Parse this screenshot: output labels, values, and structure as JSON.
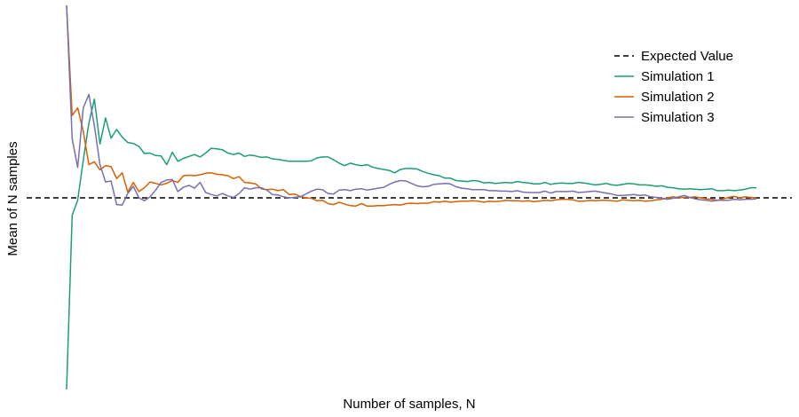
{
  "chart_data": {
    "type": "line",
    "xlabel": "Number of samples, N",
    "ylabel": "Mean of N samples",
    "xlim": [
      1,
      125
    ],
    "ylim": [
      -4.0,
      4.0
    ],
    "grid": false,
    "legend_position": "top-right",
    "expected_value": 0.0,
    "legend": [
      {
        "name": "Expected Value",
        "style": "dashed",
        "color": "#000000"
      },
      {
        "name": "Simulation 1",
        "style": "solid",
        "color": "#1b9e77"
      },
      {
        "name": "Simulation 2",
        "style": "solid",
        "color": "#d95f02"
      },
      {
        "name": "Simulation 3",
        "style": "solid",
        "color": "#7570b3"
      }
    ],
    "series": [
      {
        "name": "Simulation 1",
        "color": "#1b9e77",
        "values": [
          -3.98,
          -0.36,
          -0.05,
          0.78,
          1.55,
          2.05,
          1.12,
          1.66,
          1.24,
          1.42,
          1.26,
          1.15,
          1.13,
          1.07,
          0.92,
          0.93,
          0.88,
          0.87,
          0.69,
          0.95,
          0.76,
          0.82,
          0.86,
          0.9,
          0.85,
          0.93,
          1.03,
          1.02,
          1.0,
          0.93,
          0.9,
          0.93,
          0.86,
          0.89,
          0.87,
          0.84,
          0.85,
          0.81,
          0.8,
          0.78,
          0.76,
          0.76,
          0.76,
          0.76,
          0.77,
          0.83,
          0.85,
          0.85,
          0.79,
          0.72,
          0.67,
          0.72,
          0.69,
          0.67,
          0.69,
          0.64,
          0.61,
          0.59,
          0.57,
          0.52,
          0.59,
          0.61,
          0.61,
          0.6,
          0.55,
          0.51,
          0.48,
          0.46,
          0.41,
          0.41,
          0.36,
          0.35,
          0.34,
          0.36,
          0.35,
          0.31,
          0.32,
          0.3,
          0.31,
          0.32,
          0.31,
          0.34,
          0.32,
          0.31,
          0.29,
          0.29,
          0.32,
          0.28,
          0.3,
          0.31,
          0.3,
          0.3,
          0.32,
          0.31,
          0.29,
          0.27,
          0.28,
          0.3,
          0.27,
          0.26,
          0.28,
          0.3,
          0.29,
          0.27,
          0.27,
          0.26,
          0.24,
          0.25,
          0.22,
          0.21,
          0.19,
          0.18,
          0.19,
          0.18,
          0.17,
          0.18,
          0.19,
          0.15,
          0.15,
          0.16,
          0.15,
          0.16,
          0.18,
          0.21,
          0.21
        ]
      },
      {
        "name": "Simulation 2",
        "color": "#d95f02",
        "values": [
          4.0,
          1.71,
          1.87,
          1.38,
          0.69,
          0.75,
          0.58,
          0.67,
          0.65,
          0.4,
          0.52,
          0.12,
          0.32,
          0.13,
          0.21,
          0.33,
          0.3,
          0.27,
          0.3,
          0.36,
          0.32,
          0.46,
          0.47,
          0.46,
          0.48,
          0.51,
          0.52,
          0.49,
          0.48,
          0.46,
          0.4,
          0.44,
          0.32,
          0.31,
          0.29,
          0.19,
          0.17,
          0.18,
          0.15,
          0.17,
          0.07,
          0.08,
          0.03,
          0.0,
          -0.01,
          -0.06,
          -0.05,
          -0.12,
          -0.14,
          -0.09,
          -0.13,
          -0.16,
          -0.17,
          -0.12,
          -0.17,
          -0.17,
          -0.16,
          -0.16,
          -0.15,
          -0.14,
          -0.15,
          -0.12,
          -0.11,
          -0.12,
          -0.11,
          -0.11,
          -0.08,
          -0.09,
          -0.07,
          -0.09,
          -0.08,
          -0.07,
          -0.07,
          -0.06,
          -0.07,
          -0.09,
          -0.07,
          -0.08,
          -0.07,
          -0.05,
          -0.06,
          -0.06,
          -0.07,
          -0.06,
          -0.08,
          -0.07,
          -0.05,
          -0.06,
          -0.04,
          -0.03,
          -0.03,
          -0.04,
          -0.07,
          -0.07,
          -0.05,
          -0.06,
          -0.05,
          -0.05,
          -0.06,
          -0.07,
          -0.04,
          -0.05,
          -0.06,
          -0.05,
          -0.07,
          -0.06,
          -0.04,
          -0.03,
          0.0,
          0.02,
          0.0,
          0.01,
          0.01,
          0.02,
          0.0,
          -0.02,
          -0.03,
          -0.05,
          -0.02,
          0.01,
          0.03,
          0.0,
          0.02,
          0.01,
          0.0
        ]
      },
      {
        "name": "Simulation 3",
        "color": "#7570b3",
        "values": [
          4.0,
          1.23,
          0.63,
          1.87,
          2.15,
          1.5,
          0.69,
          0.33,
          0.35,
          -0.14,
          -0.15,
          0.09,
          0.24,
          0.0,
          -0.06,
          0.02,
          0.16,
          0.32,
          0.37,
          0.38,
          0.13,
          0.22,
          0.26,
          0.2,
          0.32,
          0.11,
          0.07,
          0.04,
          0.09,
          0.04,
          0.01,
          0.09,
          0.21,
          0.18,
          0.21,
          0.21,
          0.16,
          0.07,
          0.06,
          0.02,
          0.0,
          0.01,
          0.02,
          0.08,
          0.14,
          0.18,
          0.17,
          0.09,
          0.08,
          0.16,
          0.17,
          0.15,
          0.18,
          0.19,
          0.16,
          0.18,
          0.2,
          0.22,
          0.28,
          0.33,
          0.36,
          0.35,
          0.3,
          0.25,
          0.23,
          0.24,
          0.28,
          0.29,
          0.3,
          0.29,
          0.23,
          0.2,
          0.19,
          0.17,
          0.17,
          0.17,
          0.15,
          0.15,
          0.14,
          0.14,
          0.13,
          0.15,
          0.12,
          0.11,
          0.11,
          0.11,
          0.14,
          0.1,
          0.13,
          0.13,
          0.13,
          0.14,
          0.11,
          0.12,
          0.13,
          0.14,
          0.12,
          0.1,
          0.08,
          0.05,
          0.05,
          0.06,
          0.07,
          0.05,
          0.06,
          0.02,
          0.01,
          -0.01,
          -0.03,
          -0.01,
          0.02,
          0.05,
          0.01,
          -0.02,
          -0.04,
          -0.05,
          -0.07,
          -0.05,
          -0.05,
          -0.05,
          -0.03,
          -0.04,
          -0.03,
          -0.03,
          -0.02
        ]
      }
    ]
  }
}
